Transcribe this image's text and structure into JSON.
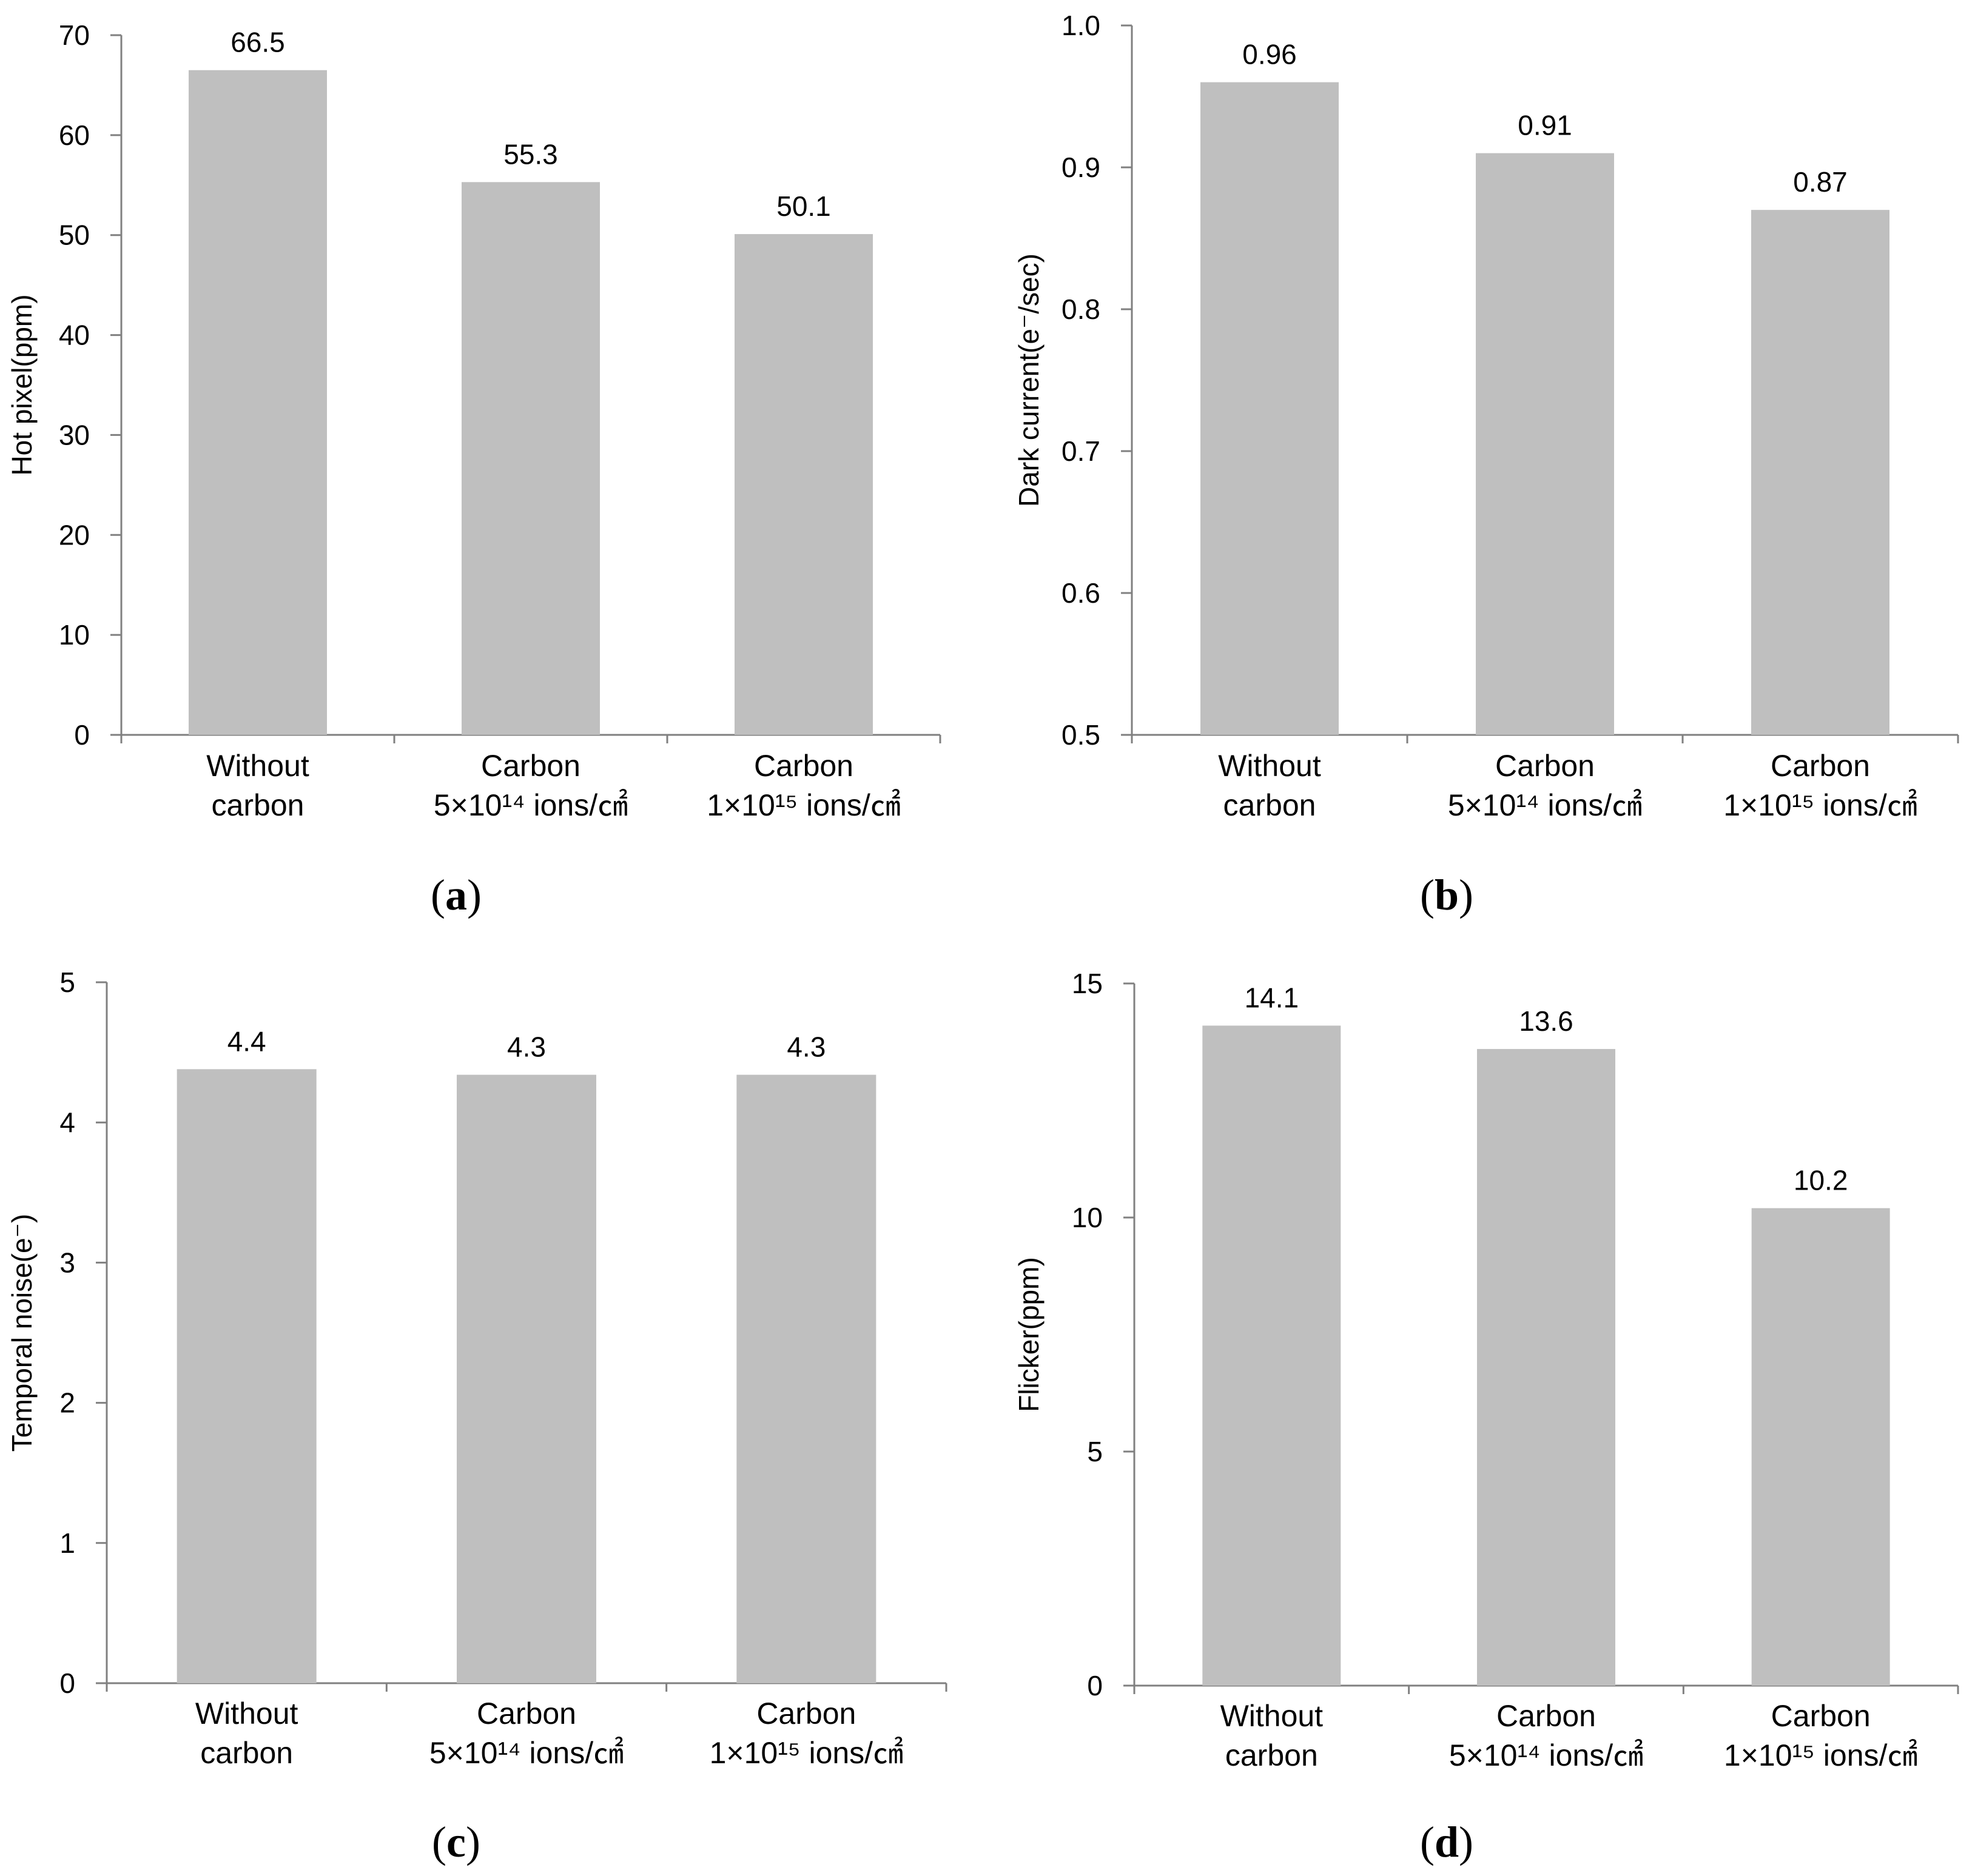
{
  "chart_data": [
    {
      "type": "bar",
      "panel_label": "a",
      "categories": [
        [
          "Without",
          "carbon"
        ],
        [
          "Carbon",
          "5×10¹⁴ ions/㎠"
        ],
        [
          "Carbon",
          "1×10¹⁵ ions/㎠"
        ]
      ],
      "values": [
        66.5,
        55.3,
        50.1
      ],
      "value_labels": [
        "66.5",
        "55.3",
        "50.1"
      ],
      "ylabel": "Hot pixel(ppm)",
      "ylim": [
        0,
        70
      ],
      "yticks": [
        "0",
        "10",
        "20",
        "30",
        "40",
        "50",
        "60",
        "70"
      ],
      "bar_color": "#bfbfbf"
    },
    {
      "type": "bar",
      "panel_label": "b",
      "categories": [
        [
          "Without",
          "carbon"
        ],
        [
          "Carbon",
          "5×10¹⁴ ions/㎠"
        ],
        [
          "Carbon",
          "1×10¹⁵ ions/㎠"
        ]
      ],
      "values": [
        0.96,
        0.91,
        0.87
      ],
      "value_labels": [
        "0.96",
        "0.91",
        "0.87"
      ],
      "ylabel": "Dark current(e⁻/sec)",
      "ylim": [
        0.5,
        1.0
      ],
      "yticks": [
        "0.5",
        "0.6",
        "0.7",
        "0.8",
        "0.9",
        "1.0"
      ],
      "bar_color": "#bfbfbf"
    },
    {
      "type": "bar",
      "panel_label": "c",
      "categories": [
        [
          "Without",
          "carbon"
        ],
        [
          "Carbon",
          "5×10¹⁴ ions/㎠"
        ],
        [
          "Carbon",
          "1×10¹⁵ ions/㎠"
        ]
      ],
      "values": [
        4.38,
        4.34,
        4.34
      ],
      "value_labels": [
        "4.4",
        "4.3",
        "4.3"
      ],
      "ylabel": "Temporal noise(e⁻)",
      "ylim": [
        0,
        5
      ],
      "yticks": [
        "0",
        "1",
        "2",
        "3",
        "4",
        "5"
      ],
      "bar_color": "#bfbfbf"
    },
    {
      "type": "bar",
      "panel_label": "d",
      "categories": [
        [
          "Without",
          "carbon"
        ],
        [
          "Carbon",
          "5×10¹⁴ ions/㎠"
        ],
        [
          "Carbon",
          "1×10¹⁵ ions/㎠"
        ]
      ],
      "values": [
        14.1,
        13.6,
        10.2
      ],
      "value_labels": [
        "14.1",
        "13.6",
        "10.2"
      ],
      "ylabel": "Flicker(ppm)",
      "ylim": [
        0,
        15
      ],
      "yticks": [
        "0",
        "5",
        "10",
        "15"
      ],
      "bar_color": "#bfbfbf"
    }
  ]
}
